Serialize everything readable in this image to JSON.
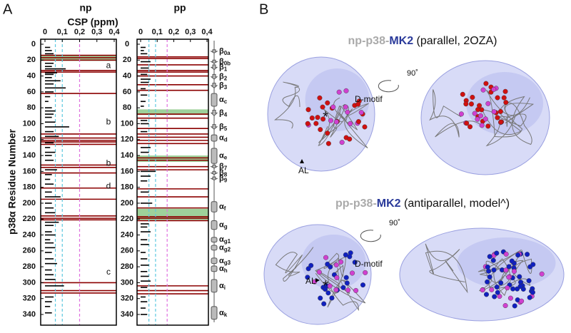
{
  "panel_labels": [
    "A",
    "B"
  ],
  "panel_a": {
    "x_axis_title": "CSP (ppm)",
    "y_axis_title": "p38α Residue Number",
    "ylim": [
      0,
      350
    ],
    "yticks": [
      0,
      20,
      40,
      60,
      80,
      100,
      120,
      140,
      160,
      180,
      200,
      220,
      240,
      260,
      280,
      300,
      320,
      340
    ],
    "secondary_structure": [
      {
        "kind": "strand",
        "symbol": "β",
        "sub": "0a",
        "start": 7,
        "end": 11
      },
      {
        "kind": "strand",
        "symbol": "β",
        "sub": "0b",
        "start": 20,
        "end": 24
      },
      {
        "kind": "strand",
        "symbol": "β",
        "sub": "1",
        "start": 26,
        "end": 32
      },
      {
        "kind": "strand",
        "symbol": "β",
        "sub": "2",
        "start": 38,
        "end": 44
      },
      {
        "kind": "strand",
        "symbol": "β",
        "sub": "3",
        "start": 49,
        "end": 55
      },
      {
        "kind": "helix",
        "symbol": "α",
        "sub": "c",
        "start": 62,
        "end": 78
      },
      {
        "kind": "strand",
        "symbol": "β",
        "sub": "4",
        "start": 83,
        "end": 90
      },
      {
        "kind": "strand",
        "symbol": "β",
        "sub": "5",
        "start": 101,
        "end": 107
      },
      {
        "kind": "helix",
        "symbol": "α",
        "sub": "d",
        "start": 114,
        "end": 122
      },
      {
        "kind": "helix",
        "symbol": "α",
        "sub": "e",
        "start": 131,
        "end": 150
      },
      {
        "kind": "strand",
        "symbol": "β",
        "sub": "7",
        "start": 152,
        "end": 156
      },
      {
        "kind": "strand",
        "symbol": "β",
        "sub": "8",
        "start": 160,
        "end": 164
      },
      {
        "kind": "strand",
        "symbol": "β",
        "sub": "9",
        "start": 167,
        "end": 171
      },
      {
        "kind": "helix",
        "symbol": "α",
        "sub": "f",
        "start": 198,
        "end": 211
      },
      {
        "kind": "helix",
        "symbol": "α",
        "sub": "g",
        "start": 222,
        "end": 233
      },
      {
        "kind": "helix",
        "symbol": "α",
        "sub": "g1",
        "start": 243,
        "end": 249
      },
      {
        "kind": "helix",
        "symbol": "α",
        "sub": "g2",
        "start": 253,
        "end": 259
      },
      {
        "kind": "helix",
        "symbol": "α",
        "sub": "g3",
        "start": 269,
        "end": 276
      },
      {
        "kind": "helix",
        "symbol": "α",
        "sub": "h",
        "start": 279,
        "end": 286
      },
      {
        "kind": "helix",
        "symbol": "α",
        "sub": "i",
        "start": 296,
        "end": 312
      },
      {
        "kind": "helix",
        "symbol": "α",
        "sub": "k",
        "start": 330,
        "end": 346
      }
    ]
  },
  "chart_data": [
    {
      "type": "bar",
      "title": "np",
      "xlim": [
        0,
        0.4
      ],
      "xticks": [
        0,
        {
          "value": 0.1,
          "label": "0,1"
        },
        {
          "value": 0.2,
          "label": "0,2"
        },
        {
          "value": 0.3,
          "label": "0,3"
        },
        {
          "value": 0.4,
          "label": "0,4"
        }
      ],
      "color": "#000000",
      "thresholds": [
        {
          "value": 0.06,
          "color": "#5bc8e0"
        },
        {
          "value": 0.1,
          "color": "#5bc8e0"
        },
        {
          "value": 0.2,
          "color": "#e070e0"
        }
      ],
      "residues": [
        4,
        8,
        12,
        24,
        28,
        31,
        36,
        38,
        42,
        46,
        50,
        55,
        60,
        66,
        72,
        80,
        84,
        88,
        92,
        98,
        104,
        110,
        116,
        124,
        130,
        136,
        140,
        146,
        158,
        164,
        170,
        176,
        186,
        192,
        200,
        206,
        212,
        224,
        228,
        236,
        240,
        246,
        250,
        256,
        262,
        270,
        276,
        284,
        290,
        296,
        304,
        318,
        324,
        330,
        338
      ],
      "values": [
        0.03,
        0.04,
        0.05,
        0.05,
        0.04,
        0.12,
        0.07,
        0.05,
        0.04,
        0.09,
        0.05,
        0.12,
        0.05,
        0.03,
        0.02,
        0.04,
        0.06,
        0.05,
        0.04,
        0.06,
        0.14,
        0.05,
        0.08,
        0.05,
        0.03,
        0.06,
        0.04,
        0.05,
        0.07,
        0.04,
        0.03,
        0.05,
        0.04,
        0.09,
        0.04,
        0.05,
        0.06,
        0.08,
        0.05,
        0.04,
        0.06,
        0.03,
        0.05,
        0.06,
        0.04,
        0.05,
        0.07,
        0.04,
        0.05,
        0.06,
        0.11,
        0.05,
        0.04,
        0.03,
        0.04
      ],
      "broadened": [
        14,
        17,
        20,
        33,
        35,
        62,
        113,
        118,
        121,
        123,
        126,
        152,
        155,
        162,
        181,
        195,
        216,
        219,
        221,
        300,
        310,
        313
      ],
      "broadened_color": "#8b0000",
      "shaded": [
        [
          14,
          21
        ]
      ],
      "shaded_color": "#9ed19a",
      "annotations": [
        {
          "text": "a",
          "residue": 27
        },
        {
          "text": "b",
          "residue": 98
        },
        {
          "text": "b",
          "residue": 150
        },
        {
          "text": "d",
          "residue": 179
        },
        {
          "text": "c",
          "residue": 287
        }
      ]
    },
    {
      "type": "bar",
      "title": "pp",
      "xlim": [
        0,
        0.4
      ],
      "xticks": [
        0,
        {
          "value": 0.1,
          "label": "0,1"
        },
        {
          "value": 0.2,
          "label": "0,2"
        },
        {
          "value": 0.3,
          "label": "0,3"
        },
        {
          "value": 0.4,
          "label": "0,4"
        }
      ],
      "color": "#000000",
      "thresholds": [
        {
          "value": 0.05,
          "color": "#5bc8e0"
        },
        {
          "value": 0.09,
          "color": "#5bc8e0"
        },
        {
          "value": 0.16,
          "color": "#e070e0"
        }
      ],
      "residues": [
        4,
        8,
        12,
        22,
        30,
        38,
        44,
        48,
        56,
        64,
        72,
        78,
        96,
        100,
        110,
        130,
        136,
        160,
        166,
        172,
        186,
        200,
        226,
        230,
        236,
        246,
        252,
        262,
        270,
        278,
        286,
        292,
        298,
        306,
        318,
        324,
        332,
        340
      ],
      "values": [
        0.03,
        0.02,
        0.04,
        0.06,
        0.05,
        0.04,
        0.06,
        0.05,
        0.03,
        0.04,
        0.03,
        0.02,
        0.04,
        0.05,
        0.04,
        0.06,
        0.05,
        0.09,
        0.06,
        0.04,
        0.05,
        0.07,
        0.05,
        0.04,
        0.06,
        0.04,
        0.05,
        0.03,
        0.04,
        0.05,
        0.04,
        0.05,
        0.06,
        0.04,
        0.03,
        0.04,
        0.03,
        0.04
      ],
      "broadened": [
        16,
        18,
        26,
        33,
        35,
        40,
        51,
        58,
        88,
        93,
        106,
        113,
        117,
        121,
        125,
        143,
        146,
        154,
        158,
        182,
        192,
        206,
        217,
        219,
        222,
        304,
        310,
        314
      ],
      "broadened_color": "#8b0000",
      "shaded": [
        [
          82,
          89
        ],
        [
          140,
          148
        ],
        [
          207,
          221
        ]
      ],
      "shaded_color": "#9ed19a",
      "annotations": []
    }
  ],
  "panel_b": [
    {
      "prefix": "np-p38",
      "sep": "-",
      "partner": "MK2",
      "suffix": "(parallel, 2OZA)",
      "rotation": "90˚",
      "dmotif": "D-motif",
      "al": "AL",
      "star": "*",
      "sphere_colors": [
        "#d01010",
        "#d040d0"
      ]
    },
    {
      "prefix": "pp-p38",
      "sep": "-",
      "partner": "MK2",
      "suffix": "(antiparallel, model^)",
      "rotation": "90˚",
      "dmotif": "D-motif",
      "al": "AL",
      "star": "*",
      "sphere_colors": [
        "#1020c0",
        "#d040d0"
      ]
    }
  ]
}
